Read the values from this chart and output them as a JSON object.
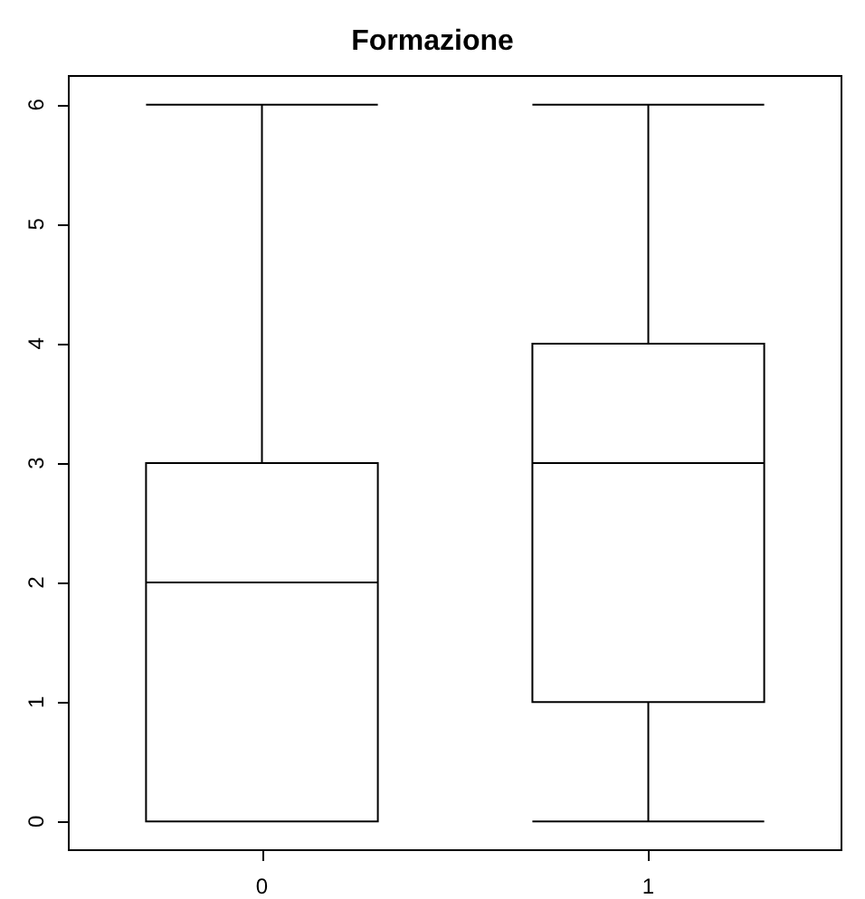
{
  "chart_data": {
    "type": "box",
    "title": "Formazione",
    "categories": [
      "0",
      "1"
    ],
    "boxes": [
      {
        "low": 0,
        "q1": 0,
        "median": 2,
        "q3": 3,
        "high": 6
      },
      {
        "low": 0,
        "q1": 1,
        "median": 3,
        "q3": 4,
        "high": 6
      }
    ],
    "ylim": [
      -0.24,
      6.24
    ],
    "yticks": [
      0,
      1,
      2,
      3,
      4,
      5,
      6
    ],
    "grid": false
  }
}
